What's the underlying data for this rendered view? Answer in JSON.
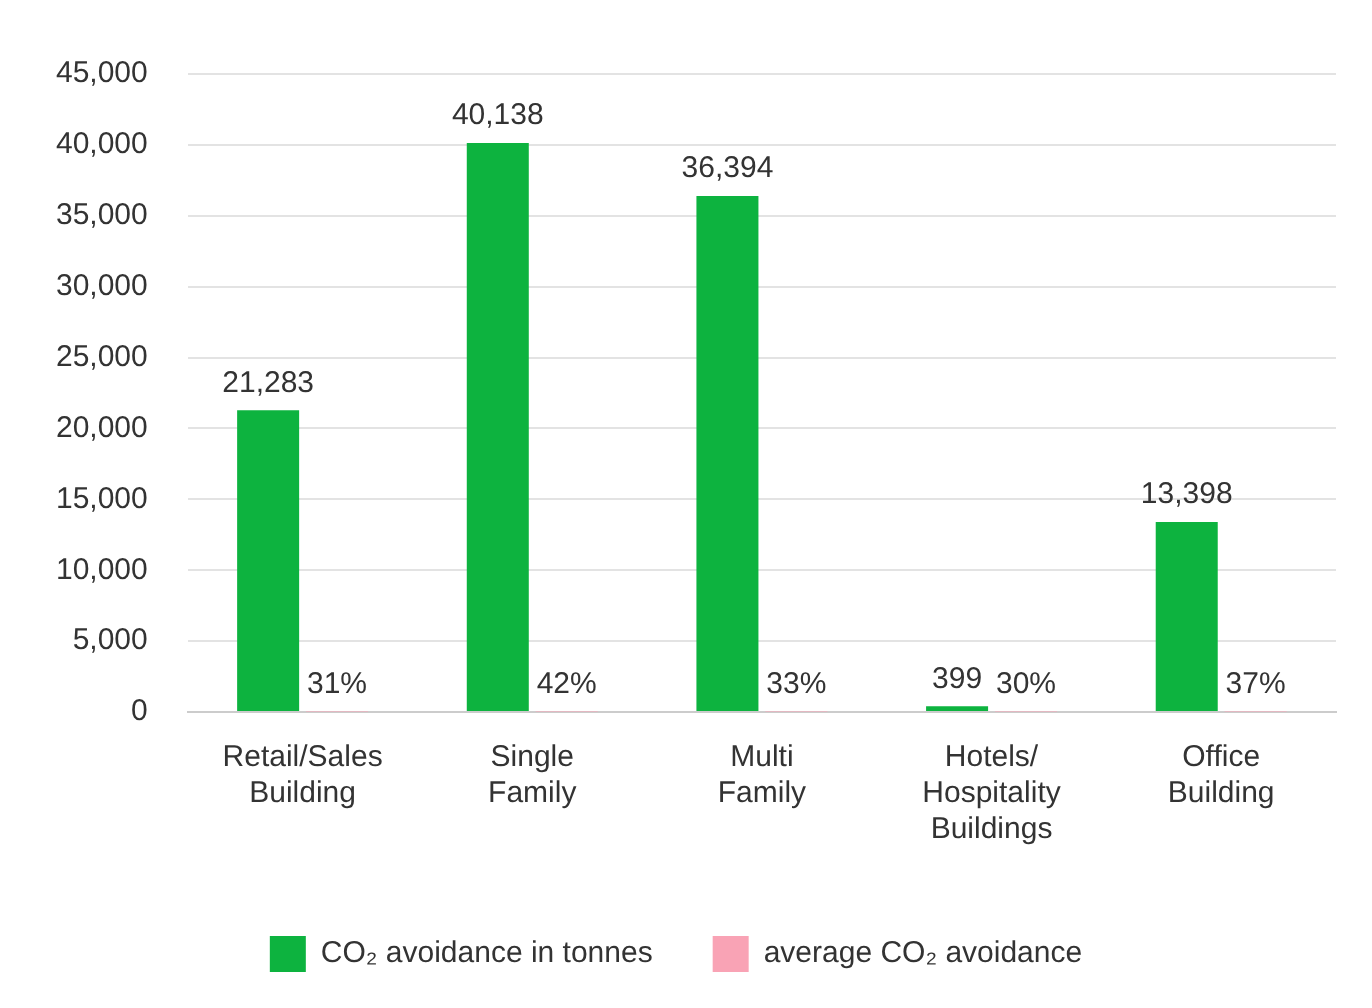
{
  "chart_data": {
    "type": "bar",
    "categories": [
      "Retail/Sales Building",
      "Single Family",
      "Multi Family",
      "Hotels/ Hospitality Buildings",
      "Office Building"
    ],
    "series": [
      {
        "name": "CO₂ avoidance in tonnes",
        "color": "#0db33f",
        "values": [
          21283,
          40138,
          36394,
          399,
          13398
        ],
        "value_labels": [
          "21,283",
          "40,138",
          "36,394",
          "399",
          "13,398"
        ]
      },
      {
        "name": "average CO₂ avoidance",
        "color": "#f9a3b5",
        "values": [
          31,
          42,
          33,
          30,
          37
        ],
        "value_labels": [
          "31%",
          "42%",
          "33%",
          "30%",
          "37%"
        ]
      }
    ],
    "ylim": [
      0,
      45000
    ],
    "yticks": [
      {
        "value": 0,
        "label": "0"
      },
      {
        "value": 5000,
        "label": "5,000"
      },
      {
        "value": 10000,
        "label": "10,000"
      },
      {
        "value": 15000,
        "label": "15,000"
      },
      {
        "value": 20000,
        "label": "20,000"
      },
      {
        "value": 25000,
        "label": "25,000"
      },
      {
        "value": 30000,
        "label": "30,000"
      },
      {
        "value": 35000,
        "label": "35,000"
      },
      {
        "value": 40000,
        "label": "40,000"
      },
      {
        "value": 45000,
        "label": "45,000"
      }
    ],
    "grid": "y",
    "legend": "bottom"
  }
}
